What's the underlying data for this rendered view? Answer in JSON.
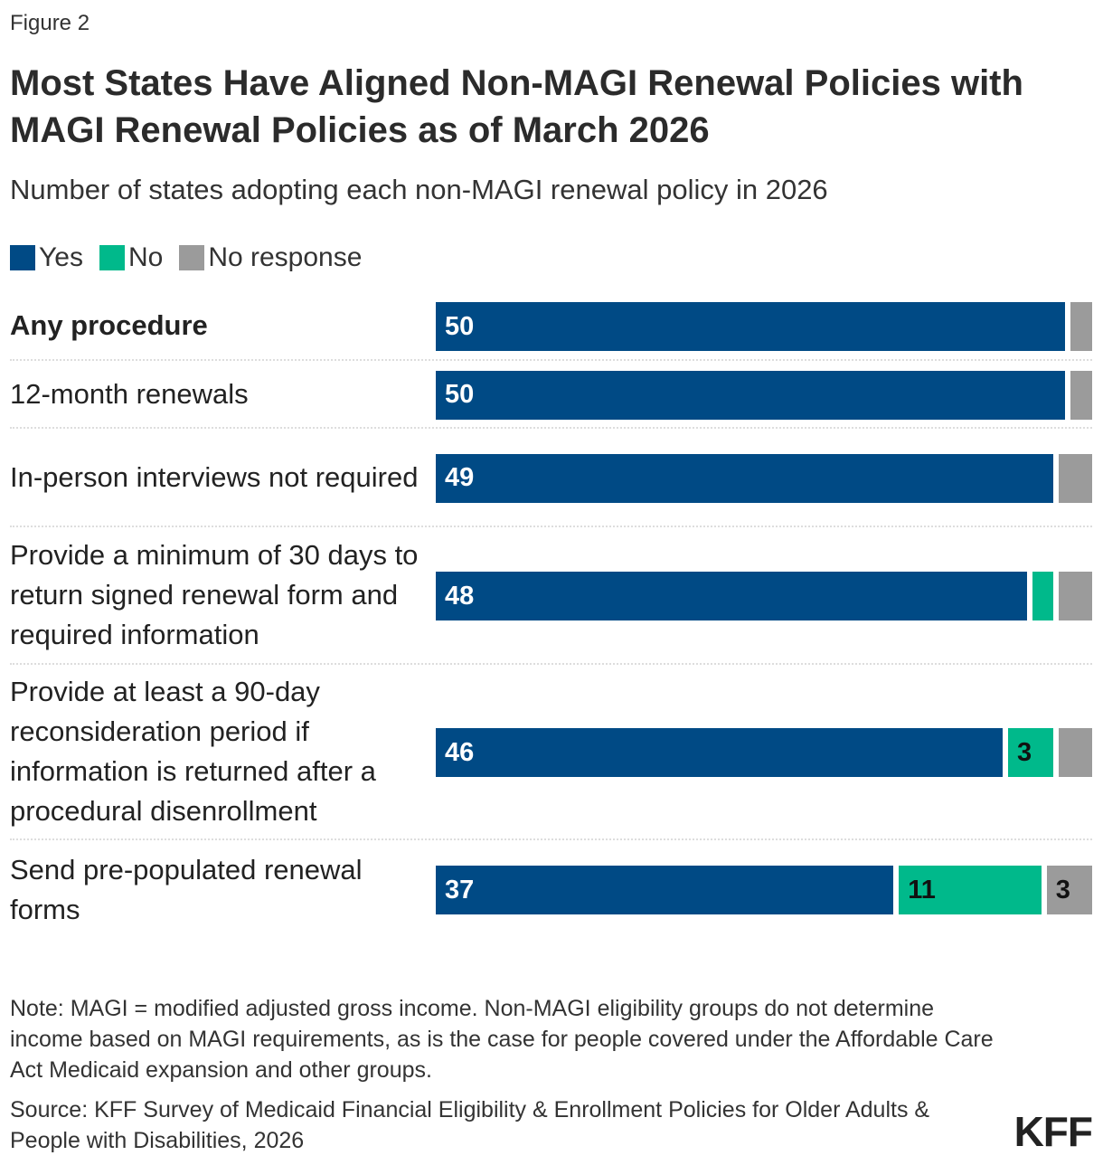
{
  "figure_label": "Figure 2",
  "chart_data": {
    "type": "bar",
    "orientation": "horizontal",
    "stacked": true,
    "title": "Most States Have Aligned Non-MAGI Renewal Policies with MAGI Renewal Policies as of March 2026",
    "subtitle": "Number of states adopting each non-MAGI renewal policy in 2026",
    "legend_placement": "top-left",
    "categories": [
      "Any procedure",
      "12-month renewals",
      "In-person interviews not required",
      "Provide a minimum of 30 days to return signed renewal form and required information",
      "Provide at least a 90-day reconsideration period if information is returned after a procedural disenrollment",
      "Send pre-populated renewal forms"
    ],
    "series": [
      {
        "name": "Yes",
        "color": "#004a85",
        "values": [
          50,
          50,
          49,
          48,
          46,
          37
        ],
        "labels": [
          "50",
          "50",
          "49",
          "48",
          "46",
          "37"
        ]
      },
      {
        "name": "No",
        "color": "#00b98b",
        "values": [
          0,
          0,
          0,
          1,
          3,
          11
        ],
        "labels": [
          "",
          "",
          "",
          "",
          "3",
          "11"
        ]
      },
      {
        "name": "No response",
        "color": "#9b9b9b",
        "values": [
          1,
          1,
          2,
          2,
          2,
          3
        ],
        "labels": [
          "",
          "",
          "",
          "",
          "",
          "3"
        ]
      }
    ],
    "xlim": [
      0,
      51
    ]
  },
  "note": "Note: MAGI = modified adjusted gross income. Non-MAGI eligibility groups do not determine income based on MAGI requirements, as is the case for people covered under the Affordable Care Act Medicaid expansion and other groups.",
  "source": "Source: KFF Survey of Medicaid Financial Eligibility & Enrollment Policies for Older Adults & People with Disabilities, 2026",
  "logo": "KFF"
}
